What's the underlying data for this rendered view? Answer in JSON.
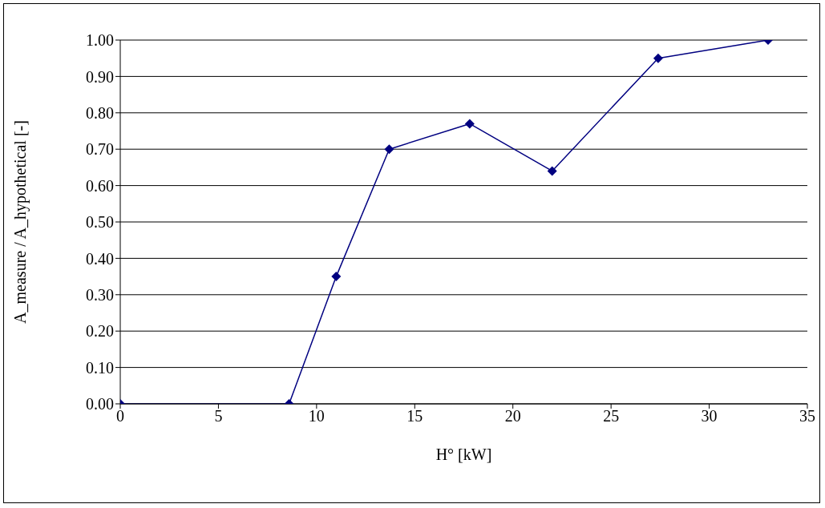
{
  "chart_data": {
    "type": "line",
    "xlabel": "H° [kW]",
    "ylabel": "A_measure / A_hypothetical [-]",
    "x": [
      0,
      8.6,
      11.0,
      13.7,
      17.8,
      22.0,
      27.4,
      33.0
    ],
    "series": [
      {
        "color": "#000080",
        "values": [
          0,
          0,
          0.35,
          0.7,
          0.77,
          0.64,
          0.95,
          1.0
        ]
      }
    ],
    "xlim": [
      0,
      35
    ],
    "xticks": [
      0,
      5,
      10,
      15,
      20,
      25,
      30,
      35
    ],
    "ylim": [
      0,
      1
    ],
    "yticks": [
      {
        "value": 0,
        "label": "0.00"
      },
      {
        "value": 0.1,
        "label": "0.10"
      },
      {
        "value": 0.2,
        "label": "0.20"
      },
      {
        "value": 0.3,
        "label": "0.30"
      },
      {
        "value": 0.4,
        "label": "0.40"
      },
      {
        "value": 0.5,
        "label": "0.50"
      },
      {
        "value": 0.6,
        "label": "0.60"
      },
      {
        "value": 0.7,
        "label": "0.70"
      },
      {
        "value": 0.8,
        "label": "0.80"
      },
      {
        "value": 0.9,
        "label": "0.90"
      },
      {
        "value": 1,
        "label": "1.00"
      }
    ],
    "grid": "y",
    "marker": "diamond",
    "line_style": "solid",
    "legend": false
  }
}
